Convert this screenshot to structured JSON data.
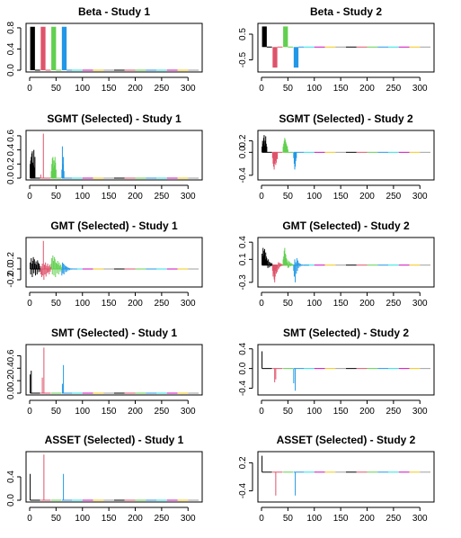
{
  "figure": {
    "background": "#ffffff",
    "colors": {
      "black": "#000000",
      "red": "#DF536B",
      "green": "#61D04F",
      "blue": "#2297E6",
      "cyan": "#28E2E5",
      "magenta": "#CD0BBC",
      "yellow": "#F5C710",
      "gray": "#9E9E9E"
    }
  },
  "chart_data": [
    {
      "type": "bar",
      "title": "Beta - Study 1",
      "xlim": [
        0,
        320
      ],
      "ylim": [
        0,
        0.85
      ],
      "x_ticks": [
        "0",
        "50",
        "100",
        "150",
        "200",
        "250",
        "300"
      ],
      "y_ticks": [
        "0.0",
        "0.4",
        "0.8"
      ],
      "series": [
        {
          "color": "black",
          "x_range": [
            1,
            10
          ],
          "values": [
            0.82
          ]
        },
        {
          "color": "red",
          "x_range": [
            21,
            30
          ],
          "values": [
            0.82
          ]
        },
        {
          "color": "green",
          "x_range": [
            41,
            50
          ],
          "values": [
            0.82
          ]
        },
        {
          "color": "blue",
          "x_range": [
            61,
            70
          ],
          "values": [
            0.82
          ]
        }
      ]
    },
    {
      "type": "bar",
      "title": "Beta - Study 2",
      "xlim": [
        0,
        320
      ],
      "ylim": [
        -0.9,
        0.85
      ],
      "x_ticks": [
        "0",
        "50",
        "100",
        "150",
        "200",
        "250",
        "300"
      ],
      "y_ticks": [
        "-0.5",
        "0.5"
      ],
      "series": [
        {
          "color": "black",
          "x_range": [
            1,
            10
          ],
          "values": [
            0.8
          ]
        },
        {
          "color": "red",
          "x_range": [
            21,
            30
          ],
          "values": [
            -0.8
          ]
        },
        {
          "color": "green",
          "x_range": [
            41,
            50
          ],
          "values": [
            0.8
          ]
        },
        {
          "color": "blue",
          "x_range": [
            61,
            70
          ],
          "values": [
            -0.8
          ]
        }
      ]
    },
    {
      "type": "bar",
      "title": "SGMT (Selected) - Study 1",
      "xlim": [
        0,
        320
      ],
      "ylim": [
        0,
        0.65
      ],
      "x_ticks": [
        "0",
        "50",
        "100",
        "150",
        "200",
        "250",
        "300"
      ],
      "y_ticks": [
        "0.0",
        "0.2",
        "0.4",
        "0.6"
      ],
      "series": [
        {
          "color": "black",
          "x_range": [
            1,
            10
          ],
          "values": [
            0.2,
            0.25,
            0.3,
            0.35,
            0.38,
            0.22,
            0.18,
            0.4,
            0.15,
            0.3
          ]
        },
        {
          "color": "red",
          "x_range": [
            21,
            30
          ],
          "values": [
            0.05,
            0.0,
            0.0,
            0.0,
            0.0,
            0.63,
            0.0,
            0.0,
            0.0,
            0.0
          ]
        },
        {
          "color": "green",
          "x_range": [
            41,
            50
          ],
          "values": [
            0.1,
            0.2,
            0.28,
            0.3,
            0.15,
            0.25,
            0.18,
            0.3,
            0.22,
            0.12
          ]
        },
        {
          "color": "blue",
          "x_range": [
            61,
            70
          ],
          "values": [
            0.12,
            0.45,
            0.2,
            0.3,
            0.1,
            0.0,
            0.0,
            0.0,
            0.0,
            0.0
          ]
        }
      ]
    },
    {
      "type": "bar",
      "title": "SGMT (Selected) - Study 2",
      "xlim": [
        0,
        320
      ],
      "ylim": [
        -0.45,
        0.35
      ],
      "x_ticks": [
        "0",
        "50",
        "100",
        "150",
        "200",
        "250",
        "300"
      ],
      "y_ticks": [
        "-0.4",
        "0.0",
        "0.2"
      ],
      "series": [
        {
          "color": "black",
          "x_range": [
            1,
            10
          ],
          "values": [
            0.1,
            0.2,
            0.15,
            0.25,
            0.3,
            0.12,
            0.2,
            0.28,
            0.15,
            0.1
          ]
        },
        {
          "color": "red",
          "x_range": [
            21,
            30
          ],
          "values": [
            -0.1,
            -0.2,
            -0.25,
            -0.3,
            -0.2,
            -0.15,
            -0.22,
            -0.18,
            -0.1,
            -0.12
          ]
        },
        {
          "color": "green",
          "x_range": [
            41,
            50
          ],
          "values": [
            0.1,
            0.15,
            0.2,
            0.25,
            0.22,
            0.18,
            0.15,
            0.12,
            0.1,
            0.05
          ]
        },
        {
          "color": "blue",
          "x_range": [
            61,
            70
          ],
          "values": [
            -0.1,
            -0.2,
            -0.3,
            -0.25,
            -0.15,
            -0.1,
            0.0,
            0.0,
            0.0,
            0.0
          ]
        }
      ]
    },
    {
      "type": "bar",
      "title": "GMT (Selected) - Study 1",
      "xlim": [
        0,
        320
      ],
      "ylim": [
        -0.3,
        0.55
      ],
      "x_ticks": [
        "0",
        "50",
        "100",
        "150",
        "200",
        "250",
        "300"
      ],
      "y_ticks": [
        "-0.2",
        "0.0",
        "0.2"
      ],
      "series": [
        {
          "color": "black",
          "x_range": [
            1,
            20
          ],
          "values": [
            0.12,
            -0.1,
            0.2,
            0.1,
            -0.15,
            0.15,
            0.22,
            -0.08,
            0.18,
            0.1,
            -0.12,
            0.14,
            0.08,
            -0.1,
            0.16,
            0.12,
            -0.06,
            0.1,
            0.06,
            -0.05
          ]
        },
        {
          "color": "red",
          "x_range": [
            21,
            40
          ],
          "values": [
            -0.1,
            0.05,
            -0.15,
            0.1,
            -0.12,
            0.52,
            -0.2,
            0.08,
            -0.1,
            0.12,
            -0.14,
            0.06,
            -0.08,
            0.1,
            -0.06,
            0.05,
            -0.1,
            0.08,
            -0.05,
            0.04
          ]
        },
        {
          "color": "green",
          "x_range": [
            41,
            60
          ],
          "values": [
            0.1,
            0.2,
            -0.1,
            0.25,
            0.15,
            -0.12,
            0.22,
            0.18,
            -0.15,
            0.12,
            0.1,
            -0.08,
            0.15,
            0.08,
            -0.1,
            0.12,
            0.06,
            -0.05,
            0.08,
            0.04
          ]
        },
        {
          "color": "blue",
          "x_range": [
            61,
            80
          ],
          "values": [
            -0.12,
            0.12,
            -0.08,
            0.1,
            -0.1,
            0.08,
            0.06,
            -0.06,
            0.05,
            -0.05,
            0.04,
            0.03,
            -0.03,
            0.02,
            0.02,
            -0.02,
            0.01,
            0.01,
            -0.01,
            0.01
          ]
        }
      ]
    },
    {
      "type": "bar",
      "title": "GMT (Selected) - Study 2",
      "xlim": [
        0,
        320
      ],
      "ylim": [
        -0.35,
        0.45
      ],
      "x_ticks": [
        "0",
        "50",
        "100",
        "150",
        "200",
        "250",
        "300"
      ],
      "y_ticks": [
        "-0.3",
        "0.1",
        "0.4"
      ],
      "series": [
        {
          "color": "black",
          "x_range": [
            1,
            20
          ],
          "values": [
            0.2,
            0.15,
            0.3,
            0.25,
            0.18,
            0.28,
            0.1,
            0.22,
            0.15,
            0.12,
            0.08,
            -0.05,
            0.1,
            0.06,
            -0.04,
            0.05,
            0.03,
            -0.02,
            0.04,
            0.02
          ]
        },
        {
          "color": "red",
          "x_range": [
            21,
            40
          ],
          "values": [
            -0.1,
            -0.2,
            -0.15,
            -0.25,
            -0.3,
            -0.2,
            -0.1,
            -0.15,
            -0.05,
            -0.12,
            -0.08,
            0.05,
            -0.06,
            0.04,
            -0.03,
            0.03,
            -0.02,
            0.02,
            -0.01,
            0.01
          ]
        },
        {
          "color": "green",
          "x_range": [
            41,
            60
          ],
          "values": [
            0.1,
            0.15,
            0.25,
            0.3,
            0.2,
            0.18,
            0.12,
            0.1,
            0.05,
            -0.05,
            0.08,
            -0.04,
            0.06,
            0.03,
            -0.02,
            0.04,
            0.02,
            -0.01,
            0.02,
            0.01
          ]
        },
        {
          "color": "blue",
          "x_range": [
            61,
            80
          ],
          "values": [
            -0.1,
            -0.2,
            0.1,
            -0.3,
            0.05,
            -0.15,
            0.12,
            -0.1,
            0.08,
            -0.05,
            0.04,
            0.03,
            -0.03,
            0.02,
            0.01,
            -0.01,
            0.01,
            0.0,
            0.0,
            0.0
          ]
        }
      ]
    },
    {
      "type": "bar",
      "title": "SMT (Selected) - Study 1",
      "xlim": [
        0,
        320
      ],
      "ylim": [
        0,
        0.75
      ],
      "x_ticks": [
        "0",
        "50",
        "100",
        "150",
        "200",
        "250",
        "300"
      ],
      "y_ticks": [
        "0.0",
        "0.2",
        "0.4",
        "0.6"
      ],
      "series": [
        {
          "color": "black",
          "x_range": [
            1,
            10
          ],
          "values": [
            0.3,
            0.0,
            0.36,
            0.0,
            0.0,
            0.0,
            0.0,
            0.0,
            0.0,
            0.0
          ]
        },
        {
          "color": "red",
          "x_range": [
            21,
            30
          ],
          "values": [
            0.0,
            0.0,
            0.0,
            0.25,
            0.0,
            0.0,
            0.73,
            0.0,
            0.0,
            0.0
          ]
        },
        {
          "color": "green",
          "x_range": [
            41,
            50
          ],
          "values": [
            0.0,
            0.0,
            0.0,
            0.0,
            0.0,
            0.0,
            0.0,
            0.0,
            0.0,
            0.0
          ]
        },
        {
          "color": "blue",
          "x_range": [
            61,
            70
          ],
          "values": [
            0.0,
            0.15,
            0.0,
            0.45,
            0.0,
            0.0,
            0.0,
            0.0,
            0.0,
            0.0
          ]
        }
      ]
    },
    {
      "type": "bar",
      "title": "SMT (Selected) - Study 2",
      "xlim": [
        0,
        320
      ],
      "ylim": [
        -0.5,
        0.45
      ],
      "x_ticks": [
        "0",
        "50",
        "100",
        "150",
        "200",
        "250",
        "300"
      ],
      "y_ticks": [
        "-0.4",
        "0.0",
        "0.4"
      ],
      "series": [
        {
          "color": "black",
          "x_range": [
            1,
            10
          ],
          "values": [
            0.35,
            0.0,
            0.0,
            0.0,
            0.0,
            0.0,
            0.0,
            0.0,
            0.0,
            0.0
          ]
        },
        {
          "color": "red",
          "x_range": [
            21,
            30
          ],
          "values": [
            0.0,
            0.0,
            0.0,
            0.0,
            -0.28,
            0.0,
            -0.22,
            0.0,
            0.0,
            0.0
          ]
        },
        {
          "color": "green",
          "x_range": [
            41,
            50
          ],
          "values": [
            0.0,
            0.0,
            0.0,
            0.0,
            0.0,
            0.0,
            0.0,
            0.0,
            0.0,
            0.0
          ]
        },
        {
          "color": "blue",
          "x_range": [
            61,
            70
          ],
          "values": [
            -0.3,
            0.0,
            0.0,
            -0.45,
            0.0,
            0.0,
            0.0,
            0.0,
            0.0,
            0.0
          ]
        }
      ]
    },
    {
      "type": "bar",
      "title": "ASSET (Selected) - Study 1",
      "xlim": [
        0,
        320
      ],
      "ylim": [
        0,
        0.8
      ],
      "x_ticks": [
        "0",
        "50",
        "100",
        "150",
        "200",
        "250",
        "300"
      ],
      "y_ticks": [
        "0.0",
        "0.4"
      ],
      "series": [
        {
          "color": "black",
          "x_range": [
            1,
            10
          ],
          "values": [
            0.45,
            0.0,
            0.0,
            0.0,
            0.0,
            0.0,
            0.0,
            0.0,
            0.0,
            0.0
          ]
        },
        {
          "color": "red",
          "x_range": [
            21,
            30
          ],
          "values": [
            0.0,
            0.0,
            0.0,
            0.0,
            0.0,
            0.0,
            0.78,
            0.0,
            0.0,
            0.0
          ]
        },
        {
          "color": "green",
          "x_range": [
            41,
            50
          ],
          "values": [
            0.0,
            0.0,
            0.0,
            0.0,
            0.0,
            0.0,
            0.0,
            0.0,
            0.0,
            0.0
          ]
        },
        {
          "color": "blue",
          "x_range": [
            61,
            70
          ],
          "values": [
            0.0,
            0.0,
            0.0,
            0.45,
            0.0,
            0.0,
            0.0,
            0.0,
            0.0,
            0.0
          ]
        }
      ]
    },
    {
      "type": "bar",
      "title": "ASSET (Selected) - Study 2",
      "xlim": [
        0,
        320
      ],
      "ylim": [
        -0.6,
        0.4
      ],
      "x_ticks": [
        "0",
        "50",
        "100",
        "150",
        "200",
        "250",
        "300"
      ],
      "y_ticks": [
        "-0.4",
        "0.2"
      ],
      "series": [
        {
          "color": "black",
          "x_range": [
            1,
            10
          ],
          "values": [
            0.35,
            0.0,
            0.0,
            0.0,
            0.0,
            0.0,
            0.0,
            0.0,
            0.0,
            0.0
          ]
        },
        {
          "color": "red",
          "x_range": [
            21,
            30
          ],
          "values": [
            0.0,
            0.0,
            0.0,
            0.0,
            0.0,
            0.0,
            -0.5,
            0.0,
            0.0,
            0.0
          ]
        },
        {
          "color": "green",
          "x_range": [
            41,
            50
          ],
          "values": [
            0.0,
            0.0,
            0.0,
            0.0,
            0.0,
            0.0,
            0.0,
            0.0,
            0.0,
            0.0
          ]
        },
        {
          "color": "blue",
          "x_range": [
            61,
            70
          ],
          "values": [
            0.0,
            0.0,
            0.0,
            -0.5,
            0.0,
            0.0,
            0.0,
            0.0,
            0.0,
            0.0
          ]
        }
      ]
    }
  ]
}
